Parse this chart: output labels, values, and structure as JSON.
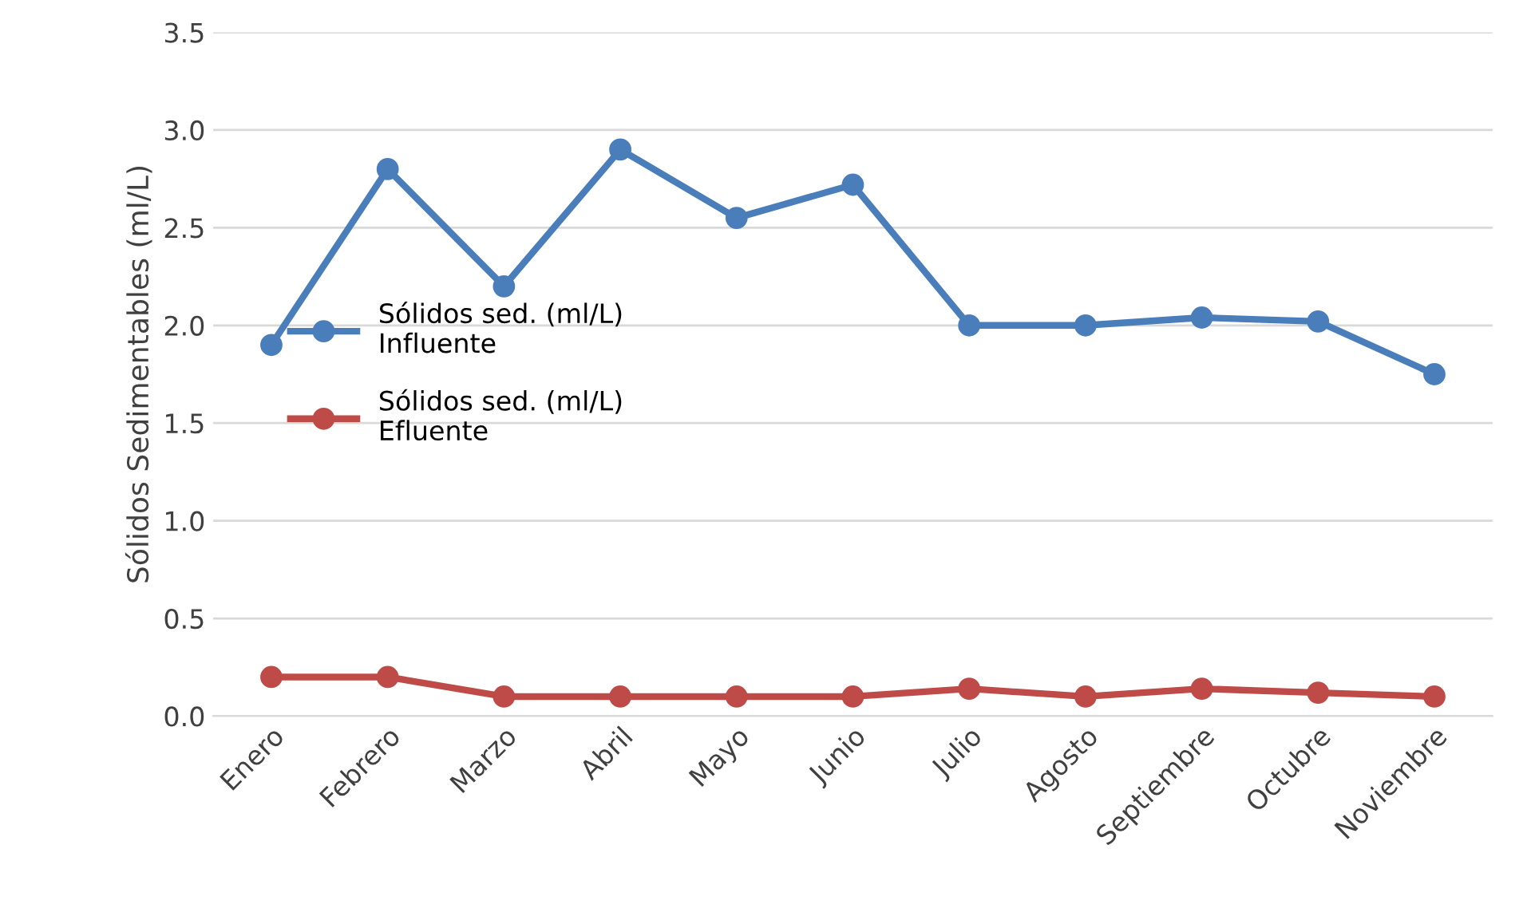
{
  "chart_data": {
    "type": "line",
    "ylabel": "Sólidos Sedimentables (ml/L)",
    "categories": [
      "Enero",
      "Febrero",
      "Marzo",
      "Abril",
      "Mayo",
      "Junio",
      "Julio",
      "Agosto",
      "Septiembre",
      "Octubre",
      "Noviembre"
    ],
    "series": [
      {
        "name": "Sólidos sed. (ml/L)\nInfluente",
        "color": "#4a7ebb",
        "values": [
          1.9,
          2.8,
          2.2,
          2.9,
          2.55,
          2.72,
          2.0,
          2.0,
          2.04,
          2.02,
          1.75
        ]
      },
      {
        "name": "Sólidos sed. (ml/L)\nEfluente",
        "color": "#be4b48",
        "values": [
          0.2,
          0.2,
          0.1,
          0.1,
          0.1,
          0.1,
          0.14,
          0.1,
          0.14,
          0.12,
          0.1
        ]
      }
    ],
    "ylim": [
      0,
      3.5
    ],
    "yticks": [
      {
        "value": 0,
        "label": "0.0"
      },
      {
        "value": 0.5,
        "label": "0.5"
      },
      {
        "value": 1,
        "label": "1.0"
      },
      {
        "value": 1.5,
        "label": "1.5"
      },
      {
        "value": 2,
        "label": "2.0"
      },
      {
        "value": 2.5,
        "label": "2.5"
      },
      {
        "value": 3,
        "label": "3.0"
      },
      {
        "value": 3.5,
        "label": "3.5"
      }
    ],
    "grid": "y",
    "legend": "center left",
    "marker": "circle",
    "line_style": "solid"
  }
}
